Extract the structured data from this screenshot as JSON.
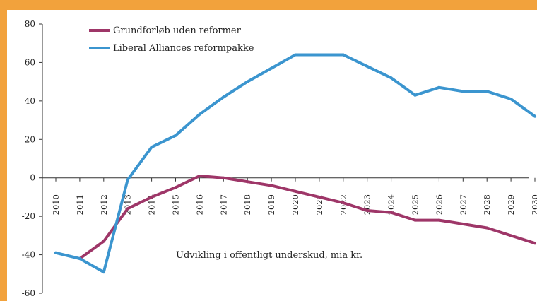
{
  "chart_data": {
    "type": "line",
    "categories": [
      "2010",
      "2011",
      "2012",
      "2013",
      "2014",
      "2015",
      "2016",
      "2017",
      "2018",
      "2019",
      "2020",
      "2021",
      "2022",
      "2023",
      "2024",
      "2025",
      "2026",
      "2027",
      "2028",
      "2029",
      "2030"
    ],
    "series": [
      {
        "name": "Grundforløb uden reformer",
        "color": "#9e3668",
        "values": [
          null,
          -42,
          -33,
          -16,
          -10,
          -5,
          1,
          0,
          -2,
          -4,
          -7,
          -10,
          -13,
          -17,
          -18,
          -22,
          -22,
          -24,
          -26,
          -30,
          -34
        ]
      },
      {
        "name": "Liberal Alliances reformpakke",
        "color": "#3b95cf",
        "values": [
          -39,
          -42,
          -49,
          -1,
          16,
          22,
          33,
          42,
          50,
          57,
          64,
          64,
          64,
          58,
          52,
          43,
          47,
          45,
          45,
          41,
          32
        ]
      }
    ],
    "ylim": [
      -60,
      80
    ],
    "yticks": [
      "80",
      "60",
      "40",
      "20",
      "0",
      "-20",
      "-40",
      "-60"
    ],
    "annotation": "Udvikling i offentligt underskud, mia kr.",
    "legend_position": "top-left",
    "grid": false
  }
}
